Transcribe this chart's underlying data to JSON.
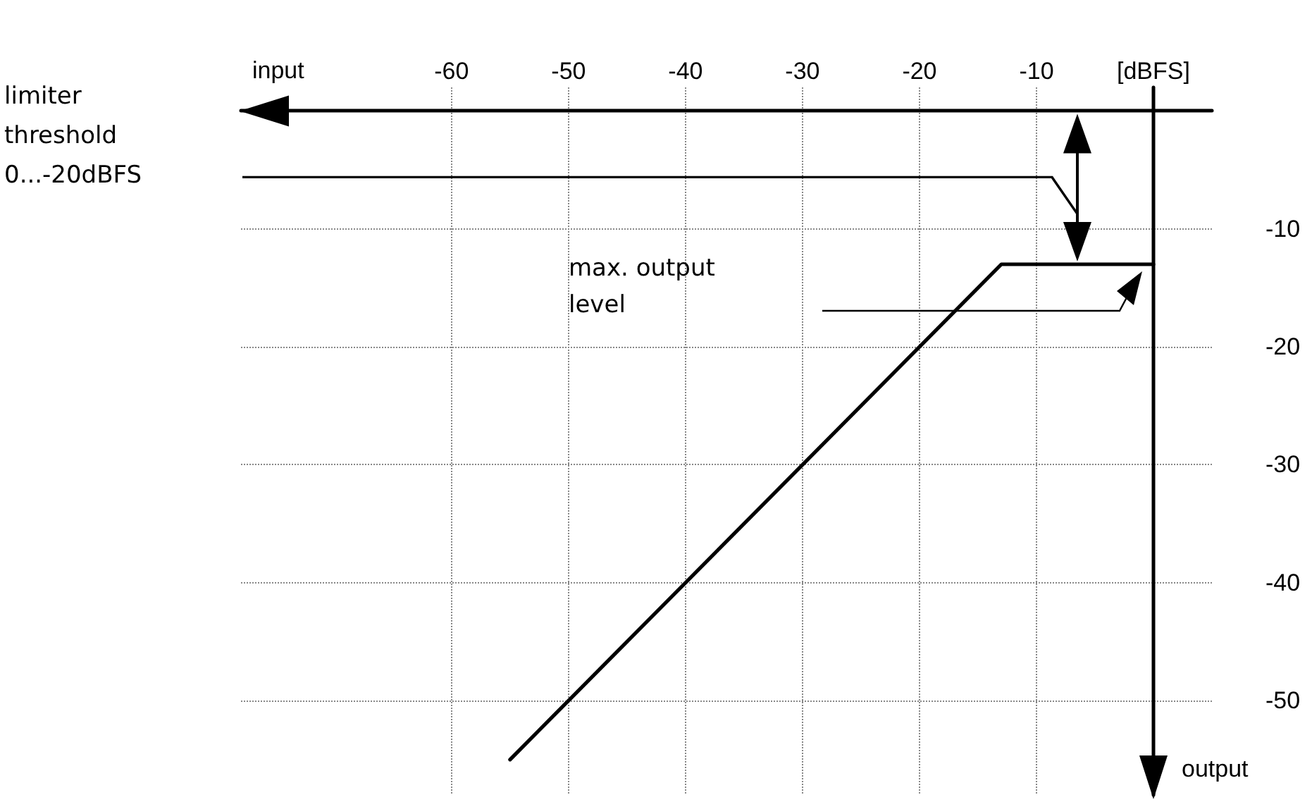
{
  "chart_data": {
    "type": "line",
    "xlabel": "input",
    "ylabel": "output",
    "x": [
      -55,
      -13,
      0
    ],
    "series": [
      {
        "color": "#000000",
        "values": [
          -55,
          -13,
          -13
        ]
      }
    ],
    "xlim": [
      -78,
      5
    ],
    "ylim": [
      -58,
      2
    ],
    "xticks": [
      -60,
      -50,
      -40,
      -30,
      -20,
      -10,
      {
        "value": 0,
        "label": "[dBFS]"
      }
    ],
    "yticks": [
      -10,
      -20,
      -30,
      -40,
      -50
    ],
    "grid": true,
    "marker": "none",
    "line_style": "solid",
    "annotations": [
      "limiter threshold 0...-20dBFS",
      "max. output level"
    ]
  }
}
